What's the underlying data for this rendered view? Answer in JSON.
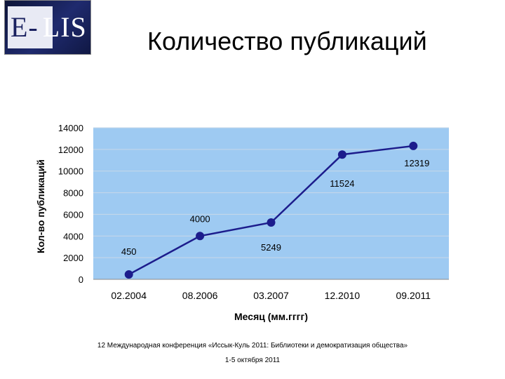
{
  "header": {
    "logo_text_prefix": "E-",
    "logo_text_suffix": "LIS",
    "title": "Количество публикаций"
  },
  "footer": {
    "line1": "12 Международная конференция «Иссык-Куль 2011: Библиотеки и демократизация общества»",
    "line2": "1-5 октября 2011"
  },
  "chart_data": {
    "type": "line",
    "categories": [
      "02.2004",
      "08.2006",
      "03.2007",
      "12.2010",
      "09.2011"
    ],
    "values": [
      450,
      4000,
      5249,
      11524,
      12319
    ],
    "data_labels": [
      "450",
      "4000",
      "5249",
      "11524",
      "12319"
    ],
    "xlabel": "Месяц (мм.гггг)",
    "ylabel": "Кол-во публикаций",
    "ylim": [
      0,
      14000
    ],
    "yticks": [
      0,
      2000,
      4000,
      6000,
      8000,
      10000,
      12000,
      14000
    ],
    "grid": true,
    "legend": "none",
    "colors": {
      "plot_background": "#9ecaf2",
      "line": "#1c1c8c",
      "marker": "#1c1c8c",
      "grid": "#c8d8e8"
    }
  }
}
